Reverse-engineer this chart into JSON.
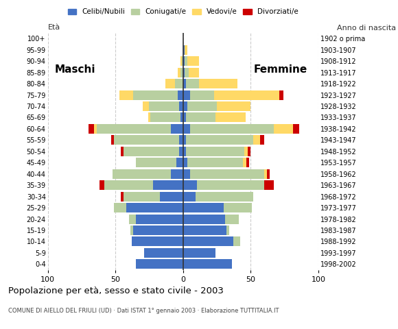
{
  "age_groups": [
    "0-4",
    "5-9",
    "10-14",
    "15-19",
    "20-24",
    "25-29",
    "30-34",
    "35-39",
    "40-44",
    "45-49",
    "50-54",
    "55-59",
    "60-64",
    "65-69",
    "70-74",
    "75-79",
    "80-84",
    "85-89",
    "90-94",
    "95-99",
    "100+"
  ],
  "birth_years": [
    "1998-2002",
    "1993-1997",
    "1988-1992",
    "1983-1987",
    "1978-1982",
    "1973-1977",
    "1968-1972",
    "1963-1967",
    "1958-1962",
    "1953-1957",
    "1948-1952",
    "1943-1947",
    "1938-1942",
    "1933-1937",
    "1928-1932",
    "1923-1927",
    "1918-1922",
    "1913-1917",
    "1908-1912",
    "1903-1907",
    "1902 o prima"
  ],
  "males": {
    "celibi": [
      35,
      29,
      38,
      37,
      35,
      42,
      17,
      22,
      9,
      5,
      3,
      3,
      9,
      2,
      3,
      4,
      0,
      0,
      0,
      0,
      0
    ],
    "coniugati": [
      0,
      0,
      0,
      2,
      5,
      9,
      27,
      36,
      43,
      30,
      41,
      48,
      55,
      22,
      22,
      33,
      6,
      2,
      1,
      0,
      0
    ],
    "vedovi": [
      0,
      0,
      0,
      0,
      0,
      0,
      0,
      0,
      0,
      0,
      0,
      0,
      2,
      2,
      5,
      10,
      7,
      2,
      1,
      0,
      0
    ],
    "divorziati": [
      0,
      0,
      0,
      0,
      0,
      0,
      2,
      4,
      0,
      0,
      2,
      2,
      4,
      0,
      0,
      0,
      0,
      0,
      0,
      0,
      0
    ]
  },
  "females": {
    "nubili": [
      36,
      24,
      37,
      32,
      31,
      30,
      9,
      10,
      5,
      3,
      2,
      2,
      5,
      2,
      3,
      5,
      2,
      1,
      1,
      1,
      0
    ],
    "coniugate": [
      0,
      0,
      5,
      2,
      10,
      21,
      43,
      50,
      55,
      41,
      43,
      50,
      62,
      22,
      22,
      18,
      10,
      3,
      2,
      0,
      0
    ],
    "vedove": [
      0,
      0,
      0,
      0,
      0,
      0,
      0,
      0,
      2,
      3,
      3,
      5,
      14,
      22,
      25,
      48,
      28,
      8,
      9,
      2,
      0
    ],
    "divorziate": [
      0,
      0,
      0,
      0,
      0,
      0,
      0,
      7,
      2,
      2,
      2,
      3,
      5,
      0,
      0,
      3,
      0,
      0,
      0,
      0,
      0
    ]
  },
  "colors": {
    "celibi": "#4472c4",
    "coniugati": "#b8cfa0",
    "vedovi": "#ffd966",
    "divorziati": "#cc0000"
  },
  "legend_labels": [
    "Celibi/Nubili",
    "Coniugati/e",
    "Vedovi/e",
    "Divorziati/e"
  ],
  "title": "Popolazione per età, sesso e stato civile - 2003",
  "subtitle": "COMUNE DI AIELLO DEL FRIULI (UD) · Dati ISTAT 1° gennaio 2003 · Elaborazione TUTTITALIA.IT",
  "xlabel_left": "Maschi",
  "xlabel_right": "Femmine",
  "ylabel_left": "Età",
  "ylabel_right": "Anno di nascita",
  "xlim": 100,
  "bg_color": "#ffffff",
  "grid_color": "#cccccc"
}
